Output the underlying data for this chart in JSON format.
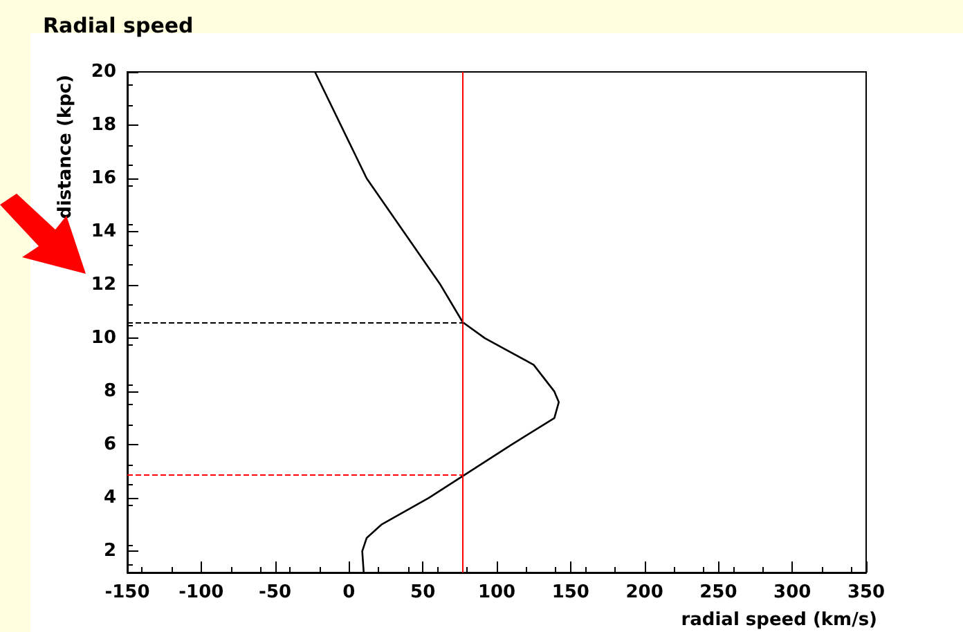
{
  "chart_data": {
    "type": "line",
    "title": "Radial speed",
    "xlabel": "radial speed (km/s)",
    "ylabel": "distance (kpc)",
    "series": [
      {
        "color": "#000000",
        "x": [
          10,
          9,
          12,
          22,
          54,
          82,
          110,
          139,
          142,
          139,
          125,
          92,
          77,
          62,
          37,
          12,
          -23
        ],
        "values": [
          1.2,
          2,
          2.5,
          3,
          4,
          5,
          6,
          7,
          7.6,
          8,
          9,
          10,
          10.6,
          12,
          14,
          16,
          20
        ]
      }
    ],
    "xlim": [
      -150,
      350
    ],
    "xticks": [
      -150,
      -100,
      -50,
      0,
      50,
      100,
      150,
      200,
      250,
      300,
      350
    ],
    "ylim": [
      1.2,
      20
    ],
    "yticks": [
      2,
      4,
      6,
      8,
      10,
      12,
      14,
      16,
      18,
      20
    ],
    "ref_lines": [
      {
        "axis": "x",
        "value": 77,
        "color": "#ff0000",
        "line_style": "solid"
      },
      {
        "axis": "y",
        "value": 10.6,
        "color": "#000000",
        "line_style": "dashed"
      },
      {
        "axis": "y",
        "value": 4.9,
        "color": "#ff0000",
        "line_style": "dashed"
      }
    ],
    "grid": false,
    "marker": "none",
    "line_style": "solid"
  }
}
